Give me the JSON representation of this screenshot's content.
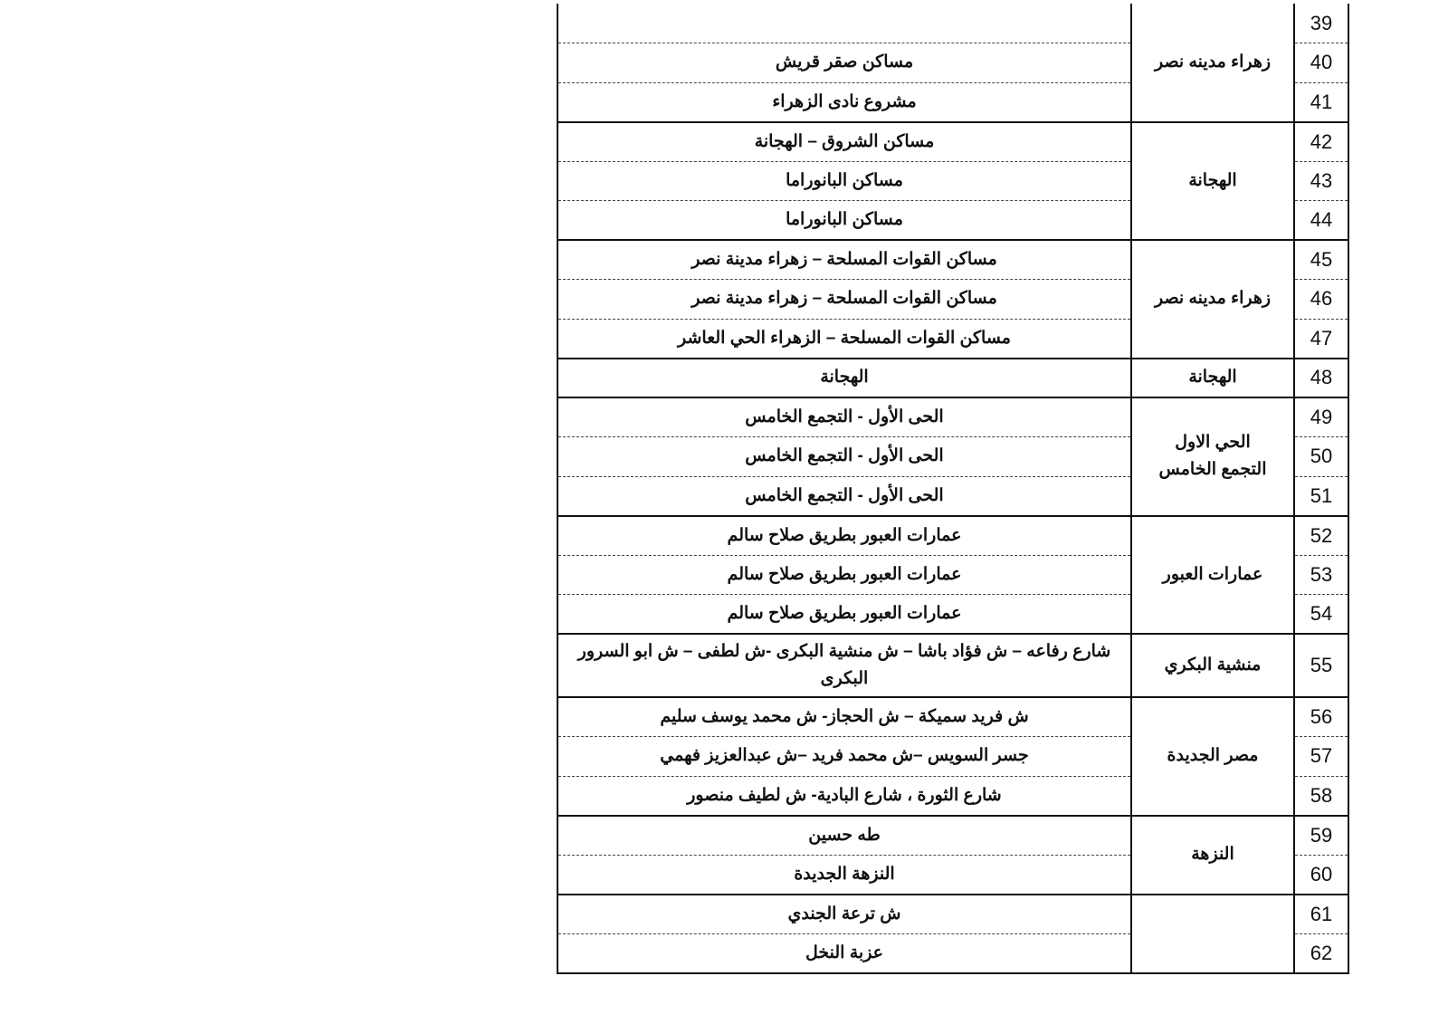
{
  "groups": [
    {
      "area": [
        "زهراء مدينه نصر"
      ],
      "rows": [
        {
          "no": "39",
          "street": ""
        },
        {
          "no": "40",
          "street": "مساكن صقر قريش"
        },
        {
          "no": "41",
          "street": "مشروع نادى الزهراء"
        }
      ]
    },
    {
      "area": [
        "الهجانة"
      ],
      "rows": [
        {
          "no": "42",
          "street": "مساكن الشروق – الهجانة"
        },
        {
          "no": "43",
          "street": "مساكن البانوراما"
        },
        {
          "no": "44",
          "street": "مساكن البانوراما"
        }
      ]
    },
    {
      "area": [
        "زهراء مدينه نصر"
      ],
      "rows": [
        {
          "no": "45",
          "street": "مساكن القوات المسلحة – زهراء مدينة نصر"
        },
        {
          "no": "46",
          "street": "مساكن القوات المسلحة – زهراء مدينة نصر"
        },
        {
          "no": "47",
          "street": "مساكن القوات المسلحة – الزهراء الحي العاشر"
        }
      ]
    },
    {
      "area": [
        "الهجانة"
      ],
      "rows": [
        {
          "no": "48",
          "street": "الهجانة"
        }
      ]
    },
    {
      "area": [
        "الحي الاول",
        "التجمع الخامس"
      ],
      "rows": [
        {
          "no": "49",
          "street": "الحى الأول - التجمع الخامس"
        },
        {
          "no": "50",
          "street": "الحى الأول - التجمع الخامس"
        },
        {
          "no": "51",
          "street": "الحى الأول - التجمع الخامس"
        }
      ]
    },
    {
      "area": [
        "عمارات العبور"
      ],
      "rows": [
        {
          "no": "52",
          "street": "عمارات العبور بطريق صلاح سالم"
        },
        {
          "no": "53",
          "street": "عمارات العبور بطريق صلاح سالم"
        },
        {
          "no": "54",
          "street": "عمارات العبور بطريق صلاح سالم"
        }
      ]
    },
    {
      "area": [
        "منشية البكري"
      ],
      "rows": [
        {
          "no": "55",
          "street": "شارع رفاعه – ش فؤاد باشا – ش منشية البكرى -ش لطفى – ش ابو السرور البكرى"
        }
      ]
    },
    {
      "area": [
        "مصر الجديدة"
      ],
      "rows": [
        {
          "no": "56",
          "street": "ش فريد سميكة – ش الحجاز- ش محمد يوسف سليم"
        },
        {
          "no": "57",
          "street": "جسر السويس –ش محمد فريد –ش عبدالعزيز فهمي"
        },
        {
          "no": "58",
          "street": "شارع الثورة ، شارع البادية- ش لطيف منصور"
        }
      ]
    },
    {
      "area": [
        "النزهة"
      ],
      "rows": [
        {
          "no": "59",
          "street": "طه حسين"
        },
        {
          "no": "60",
          "street": "النزهة الجديدة"
        }
      ]
    },
    {
      "area": [
        ""
      ],
      "rows": [
        {
          "no": "61",
          "street": "ش ترعة الجندي"
        },
        {
          "no": "62",
          "street": "عزبة النخل"
        }
      ]
    }
  ]
}
